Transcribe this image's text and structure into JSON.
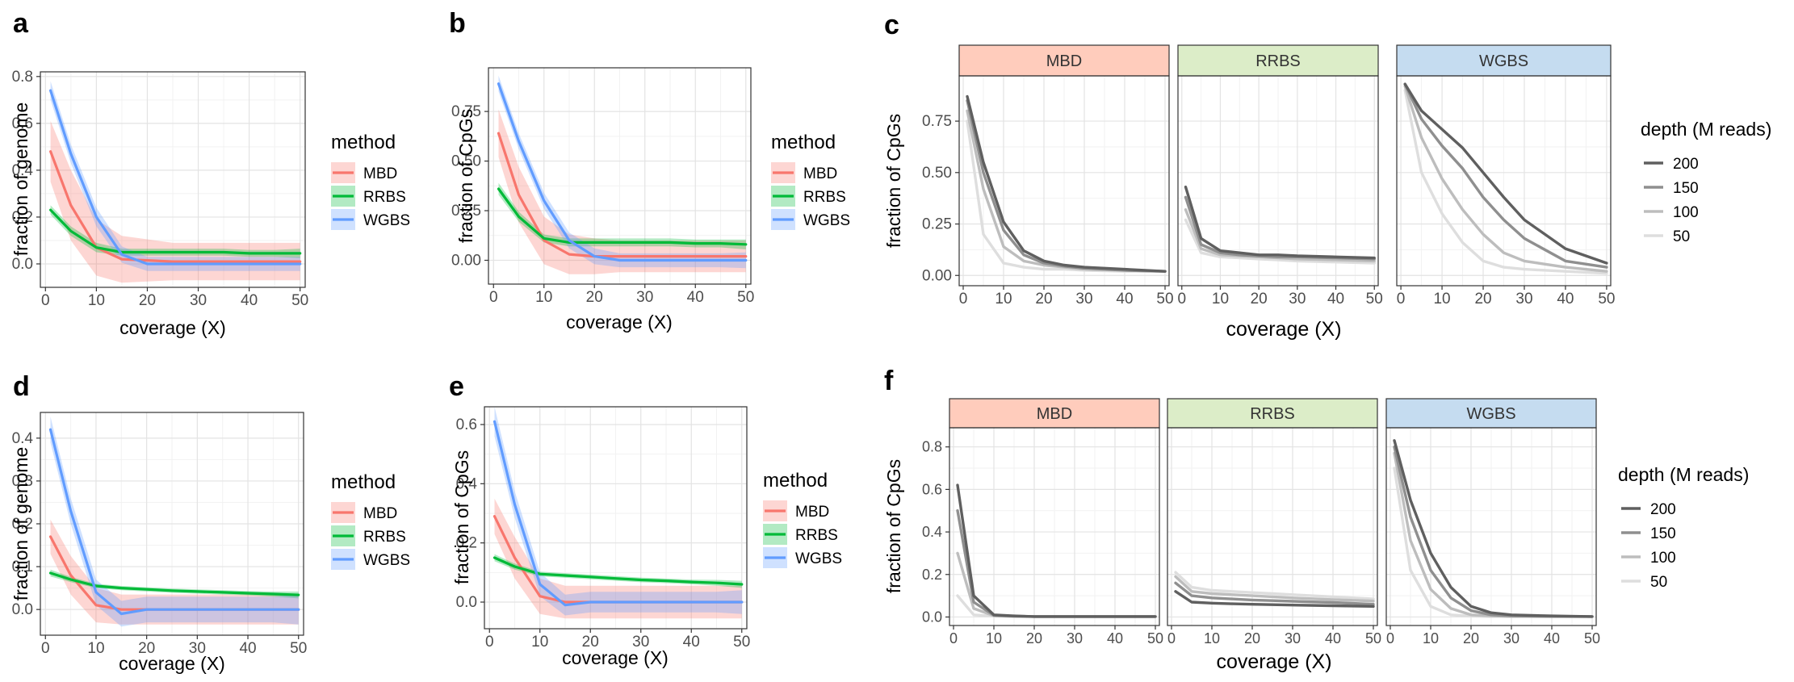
{
  "colors": {
    "MBD": "#F8766D",
    "RRBS": "#00BA38",
    "WGBS": "#619CFF",
    "strip_MBD": "#FFCCBC",
    "strip_RRBS": "#DCEDC8",
    "strip_WGBS": "#C5DCF0",
    "depth_200": "#5f5f5f",
    "depth_150": "#8f8f8f",
    "depth_100": "#bdbdbd",
    "depth_50": "#dedede"
  },
  "smooth_legend": {
    "title": "method",
    "items": [
      "MBD",
      "RRBS",
      "WGBS"
    ]
  },
  "depth_legend": {
    "title": "depth (M reads)",
    "items": [
      "200",
      "150",
      "100",
      "50"
    ]
  },
  "chart_data": [
    {
      "id": "a",
      "type": "line",
      "panel_label": "a",
      "xlabel": "coverage (X)",
      "ylabel": "fraction of genome",
      "xlim": [
        -1,
        51
      ],
      "ylim": [
        -0.1,
        0.82
      ],
      "xticks": [
        0,
        10,
        20,
        30,
        40,
        50
      ],
      "yticks": [
        0.0,
        0.2,
        0.4,
        0.6,
        0.8
      ],
      "ytick_labels": [
        "0.0",
        "0.2",
        "0.4",
        "0.6",
        "0.8"
      ],
      "grid": true,
      "legend": "right",
      "x": [
        1,
        5,
        10,
        15,
        20,
        25,
        30,
        35,
        40,
        45,
        50
      ],
      "series": [
        {
          "name": "MBD",
          "values": [
            0.48,
            0.25,
            0.07,
            0.02,
            0.015,
            0.01,
            0.01,
            0.01,
            0.01,
            0.01,
            0.01
          ],
          "band": [
            0.13,
            0.15,
            0.12,
            0.1,
            0.09,
            0.08,
            0.08,
            0.08,
            0.08,
            0.08,
            0.08
          ]
        },
        {
          "name": "RRBS",
          "values": [
            0.23,
            0.14,
            0.07,
            0.05,
            0.05,
            0.05,
            0.05,
            0.05,
            0.045,
            0.045,
            0.045
          ],
          "band": [
            0.02,
            0.02,
            0.02,
            0.015,
            0.015,
            0.015,
            0.015,
            0.015,
            0.015,
            0.015,
            0.02
          ]
        },
        {
          "name": "WGBS",
          "values": [
            0.74,
            0.47,
            0.2,
            0.04,
            0.0,
            0.0,
            0.0,
            0.0,
            0.0,
            0.0,
            0.0
          ],
          "band": [
            0.04,
            0.04,
            0.04,
            0.035,
            0.03,
            0.03,
            0.03,
            0.03,
            0.03,
            0.03,
            0.03
          ]
        }
      ]
    },
    {
      "id": "b",
      "type": "line",
      "panel_label": "b",
      "xlabel": "coverage (X)",
      "ylabel": "fraction of CpGs",
      "xlim": [
        -1,
        51
      ],
      "ylim": [
        -0.12,
        0.97
      ],
      "xticks": [
        0,
        10,
        20,
        30,
        40,
        50
      ],
      "yticks": [
        0.0,
        0.25,
        0.5,
        0.75
      ],
      "ytick_labels": [
        "0.00",
        "0.25",
        "0.50",
        "0.75"
      ],
      "grid": true,
      "legend": "right",
      "x": [
        1,
        5,
        10,
        15,
        20,
        25,
        30,
        35,
        40,
        45,
        50
      ],
      "series": [
        {
          "name": "MBD",
          "values": [
            0.64,
            0.33,
            0.1,
            0.03,
            0.02,
            0.02,
            0.02,
            0.02,
            0.02,
            0.02,
            0.02
          ],
          "band": [
            0.12,
            0.14,
            0.12,
            0.1,
            0.09,
            0.08,
            0.08,
            0.08,
            0.08,
            0.08,
            0.08
          ]
        },
        {
          "name": "RRBS",
          "values": [
            0.36,
            0.22,
            0.11,
            0.09,
            0.09,
            0.09,
            0.09,
            0.09,
            0.085,
            0.085,
            0.08
          ],
          "band": [
            0.03,
            0.025,
            0.02,
            0.02,
            0.02,
            0.02,
            0.02,
            0.02,
            0.02,
            0.02,
            0.025
          ]
        },
        {
          "name": "WGBS",
          "values": [
            0.89,
            0.6,
            0.3,
            0.1,
            0.02,
            0.0,
            0.0,
            0.0,
            0.0,
            0.0,
            0.0
          ],
          "band": [
            0.04,
            0.04,
            0.04,
            0.04,
            0.04,
            0.035,
            0.035,
            0.035,
            0.035,
            0.035,
            0.04
          ]
        }
      ]
    },
    {
      "id": "c",
      "type": "line",
      "panel_label": "c",
      "xlabel": "coverage (X)",
      "ylabel": "fraction of CpGs",
      "xlim": [
        -1,
        51
      ],
      "ylim": [
        -0.05,
        0.97
      ],
      "xticks": [
        0,
        10,
        20,
        30,
        40,
        50
      ],
      "yticks": [
        0.0,
        0.25,
        0.5,
        0.75
      ],
      "ytick_labels": [
        "0.00",
        "0.25",
        "0.50",
        "0.75"
      ],
      "grid": true,
      "legend": "right",
      "facets": [
        {
          "name": "MBD",
          "x": [
            1,
            5,
            10,
            15,
            20,
            25,
            30,
            40,
            50
          ],
          "series": [
            {
              "name": "200",
              "values": [
                0.87,
                0.55,
                0.26,
                0.12,
                0.07,
                0.05,
                0.04,
                0.03,
                0.02
              ]
            },
            {
              "name": "150",
              "values": [
                0.85,
                0.5,
                0.22,
                0.1,
                0.06,
                0.045,
                0.035,
                0.025,
                0.02
              ]
            },
            {
              "name": "100",
              "values": [
                0.8,
                0.42,
                0.14,
                0.07,
                0.05,
                0.04,
                0.03,
                0.025,
                0.02
              ]
            },
            {
              "name": "50",
              "values": [
                0.75,
                0.2,
                0.06,
                0.04,
                0.03,
                0.03,
                0.025,
                0.02,
                0.02
              ]
            }
          ]
        },
        {
          "name": "RRBS",
          "x": [
            1,
            5,
            10,
            15,
            20,
            25,
            30,
            40,
            50
          ],
          "series": [
            {
              "name": "200",
              "values": [
                0.43,
                0.18,
                0.12,
                0.11,
                0.1,
                0.1,
                0.095,
                0.09,
                0.085
              ]
            },
            {
              "name": "150",
              "values": [
                0.38,
                0.15,
                0.11,
                0.1,
                0.095,
                0.09,
                0.09,
                0.085,
                0.08
              ]
            },
            {
              "name": "100",
              "values": [
                0.32,
                0.13,
                0.1,
                0.095,
                0.09,
                0.085,
                0.08,
                0.075,
                0.07
              ]
            },
            {
              "name": "50",
              "values": [
                0.27,
                0.11,
                0.09,
                0.085,
                0.08,
                0.075,
                0.07,
                0.065,
                0.06
              ]
            }
          ]
        },
        {
          "name": "WGBS",
          "x": [
            1,
            5,
            10,
            15,
            20,
            25,
            30,
            40,
            50
          ],
          "series": [
            {
              "name": "200",
              "values": [
                0.93,
                0.8,
                0.71,
                0.62,
                0.5,
                0.38,
                0.27,
                0.13,
                0.06
              ]
            },
            {
              "name": "150",
              "values": [
                0.93,
                0.76,
                0.63,
                0.52,
                0.38,
                0.27,
                0.18,
                0.07,
                0.04
              ]
            },
            {
              "name": "100",
              "values": [
                0.92,
                0.67,
                0.47,
                0.32,
                0.2,
                0.11,
                0.07,
                0.04,
                0.02
              ]
            },
            {
              "name": "50",
              "values": [
                0.9,
                0.5,
                0.3,
                0.16,
                0.07,
                0.04,
                0.03,
                0.02,
                0.01
              ]
            }
          ]
        }
      ]
    },
    {
      "id": "d",
      "type": "line",
      "panel_label": "d",
      "xlabel": "coverage (X)",
      "ylabel": "fraction of genome",
      "xlim": [
        -1,
        51
      ],
      "ylim": [
        -0.06,
        0.46
      ],
      "xticks": [
        0,
        10,
        20,
        30,
        40,
        50
      ],
      "yticks": [
        0.0,
        0.1,
        0.2,
        0.3,
        0.4
      ],
      "ytick_labels": [
        "0.0",
        "0.1",
        "0.2",
        "0.3",
        "0.4"
      ],
      "grid": true,
      "legend": "right",
      "x": [
        1,
        5,
        10,
        15,
        20,
        25,
        30,
        35,
        40,
        45,
        50
      ],
      "series": [
        {
          "name": "MBD",
          "values": [
            0.17,
            0.08,
            0.01,
            0.0,
            0.0,
            0.0,
            0.0,
            0.0,
            0.0,
            0.0,
            0.0
          ],
          "band": [
            0.04,
            0.045,
            0.04,
            0.035,
            0.035,
            0.035,
            0.035,
            0.035,
            0.035,
            0.035,
            0.035
          ]
        },
        {
          "name": "RRBS",
          "values": [
            0.085,
            0.07,
            0.055,
            0.05,
            0.047,
            0.044,
            0.042,
            0.04,
            0.038,
            0.036,
            0.034
          ],
          "band": [
            0.008,
            0.006,
            0.005,
            0.005,
            0.005,
            0.005,
            0.005,
            0.005,
            0.005,
            0.006,
            0.008
          ]
        },
        {
          "name": "WGBS",
          "values": [
            0.42,
            0.23,
            0.04,
            -0.01,
            0.0,
            0.0,
            0.0,
            0.0,
            0.0,
            0.0,
            0.0
          ],
          "band": [
            0.03,
            0.03,
            0.03,
            0.03,
            0.03,
            0.03,
            0.03,
            0.03,
            0.03,
            0.03,
            0.035
          ]
        }
      ]
    },
    {
      "id": "e",
      "type": "line",
      "panel_label": "e",
      "xlabel": "coverage (X)",
      "ylabel": "fraction of CpGs",
      "xlim": [
        -1,
        51
      ],
      "ylim": [
        -0.09,
        0.66
      ],
      "xticks": [
        0,
        10,
        20,
        30,
        40,
        50
      ],
      "yticks": [
        0.0,
        0.2,
        0.4,
        0.6
      ],
      "ytick_labels": [
        "0.0",
        "0.2",
        "0.4",
        "0.6"
      ],
      "grid": true,
      "legend": "right",
      "x": [
        1,
        5,
        10,
        15,
        20,
        25,
        30,
        35,
        40,
        45,
        50
      ],
      "series": [
        {
          "name": "MBD",
          "values": [
            0.29,
            0.15,
            0.02,
            0.0,
            0.0,
            0.0,
            0.0,
            0.0,
            0.0,
            0.0,
            0.0
          ],
          "band": [
            0.06,
            0.07,
            0.06,
            0.055,
            0.055,
            0.055,
            0.055,
            0.055,
            0.055,
            0.055,
            0.055
          ]
        },
        {
          "name": "RRBS",
          "values": [
            0.15,
            0.12,
            0.095,
            0.09,
            0.085,
            0.08,
            0.075,
            0.072,
            0.068,
            0.065,
            0.06
          ],
          "band": [
            0.012,
            0.01,
            0.008,
            0.008,
            0.008,
            0.008,
            0.008,
            0.008,
            0.008,
            0.01,
            0.012
          ]
        },
        {
          "name": "WGBS",
          "values": [
            0.61,
            0.33,
            0.06,
            -0.01,
            0.0,
            0.0,
            0.0,
            0.0,
            0.0,
            0.0,
            0.0
          ],
          "band": [
            0.05,
            0.045,
            0.04,
            0.035,
            0.035,
            0.035,
            0.035,
            0.035,
            0.035,
            0.035,
            0.04
          ]
        }
      ]
    },
    {
      "id": "f",
      "type": "line",
      "panel_label": "f",
      "xlabel": "coverage (X)",
      "ylabel": "fraction of CpGs",
      "xlim": [
        -1,
        51
      ],
      "ylim": [
        -0.04,
        0.89
      ],
      "xticks": [
        0,
        10,
        20,
        30,
        40,
        50
      ],
      "yticks": [
        0.0,
        0.2,
        0.4,
        0.6,
        0.8
      ],
      "ytick_labels": [
        "0.0",
        "0.2",
        "0.4",
        "0.6",
        "0.8"
      ],
      "grid": true,
      "legend": "right",
      "facets": [
        {
          "name": "MBD",
          "x": [
            1,
            5,
            10,
            15,
            20,
            25,
            30,
            40,
            50
          ],
          "series": [
            {
              "name": "200",
              "values": [
                0.62,
                0.1,
                0.01,
                0.005,
                0.002,
                0.002,
                0.002,
                0.002,
                0.002
              ]
            },
            {
              "name": "150",
              "values": [
                0.5,
                0.07,
                0.008,
                0.004,
                0.002,
                0.002,
                0.002,
                0.002,
                0.002
              ]
            },
            {
              "name": "100",
              "values": [
                0.3,
                0.04,
                0.006,
                0.003,
                0.002,
                0.002,
                0.002,
                0.002,
                0.002
              ]
            },
            {
              "name": "50",
              "values": [
                0.1,
                0.01,
                0.004,
                0.002,
                0.002,
                0.002,
                0.002,
                0.002,
                0.002
              ]
            }
          ]
        },
        {
          "name": "RRBS",
          "x": [
            1,
            5,
            10,
            15,
            20,
            25,
            30,
            40,
            50
          ],
          "series": [
            {
              "name": "200",
              "values": [
                0.12,
                0.07,
                0.065,
                0.062,
                0.06,
                0.058,
                0.056,
                0.053,
                0.05
              ]
            },
            {
              "name": "150",
              "values": [
                0.16,
                0.1,
                0.09,
                0.085,
                0.08,
                0.077,
                0.074,
                0.068,
                0.06
              ]
            },
            {
              "name": "100",
              "values": [
                0.19,
                0.12,
                0.11,
                0.105,
                0.1,
                0.095,
                0.09,
                0.082,
                0.075
              ]
            },
            {
              "name": "50",
              "values": [
                0.21,
                0.14,
                0.125,
                0.12,
                0.115,
                0.11,
                0.105,
                0.095,
                0.085
              ]
            }
          ]
        },
        {
          "name": "WGBS",
          "x": [
            1,
            5,
            10,
            15,
            20,
            25,
            30,
            40,
            50
          ],
          "series": [
            {
              "name": "200",
              "values": [
                0.83,
                0.55,
                0.3,
                0.14,
                0.05,
                0.02,
                0.01,
                0.005,
                0.002
              ]
            },
            {
              "name": "150",
              "values": [
                0.8,
                0.47,
                0.22,
                0.09,
                0.03,
                0.01,
                0.005,
                0.003,
                0.002
              ]
            },
            {
              "name": "100",
              "values": [
                0.77,
                0.36,
                0.13,
                0.04,
                0.01,
                0.005,
                0.003,
                0.002,
                0.002
              ]
            },
            {
              "name": "50",
              "values": [
                0.7,
                0.22,
                0.05,
                0.01,
                0.004,
                0.002,
                0.002,
                0.002,
                0.002
              ]
            }
          ]
        }
      ]
    }
  ]
}
